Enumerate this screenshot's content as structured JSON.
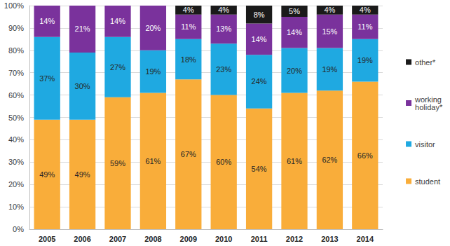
{
  "chart_data": {
    "type": "bar",
    "stacked": true,
    "data_labels": true,
    "grid": true,
    "legend": "right",
    "categories": [
      "2005",
      "2006",
      "2007",
      "2008",
      "2009",
      "2010",
      "2011",
      "2012",
      "2013",
      "2014"
    ],
    "ylim": [
      0,
      100
    ],
    "yticks": [
      {
        "value": 0,
        "label": "0%"
      },
      {
        "value": 10,
        "label": "10%"
      },
      {
        "value": 20,
        "label": "20%"
      },
      {
        "value": 30,
        "label": "30%"
      },
      {
        "value": 40,
        "label": "40%"
      },
      {
        "value": 50,
        "label": "50%"
      },
      {
        "value": 60,
        "label": "60%"
      },
      {
        "value": 70,
        "label": "70%"
      },
      {
        "value": 80,
        "label": "80%"
      },
      {
        "value": 90,
        "label": "90%"
      },
      {
        "value": 100,
        "label": "100%"
      }
    ],
    "series": [
      {
        "name": "student",
        "color": "#f9ad3a",
        "values": [
          49,
          49,
          59,
          61,
          67,
          60,
          54,
          61,
          62,
          66
        ],
        "value_labels": [
          "49%",
          "49%",
          "59%",
          "61%",
          "67%",
          "60%",
          "54%",
          "61%",
          "62%",
          "66%"
        ]
      },
      {
        "name": "visitor",
        "color": "#1fa9e1",
        "values": [
          37,
          30,
          27,
          19,
          18,
          23,
          24,
          20,
          19,
          19
        ],
        "value_labels": [
          "37%",
          "30%",
          "27%",
          "19%",
          "18%",
          "23%",
          "24%",
          "20%",
          "19%",
          "19%"
        ]
      },
      {
        "name": "working holiday*",
        "color": "#7a329c",
        "values": [
          14,
          21,
          14,
          20,
          11,
          13,
          14,
          14,
          15,
          11
        ],
        "value_labels": [
          "14%",
          "21%",
          "14%",
          "20%",
          "11%",
          "13%",
          "14%",
          "14%",
          "15%",
          "11%"
        ]
      },
      {
        "name": "other*",
        "color": "#1a1a1a",
        "values": [
          null,
          null,
          null,
          null,
          4,
          4,
          8,
          5,
          4,
          4
        ],
        "value_labels": [
          null,
          null,
          null,
          null,
          "4%",
          "4%",
          "8%",
          "5%",
          "4%",
          "4%"
        ]
      }
    ]
  }
}
